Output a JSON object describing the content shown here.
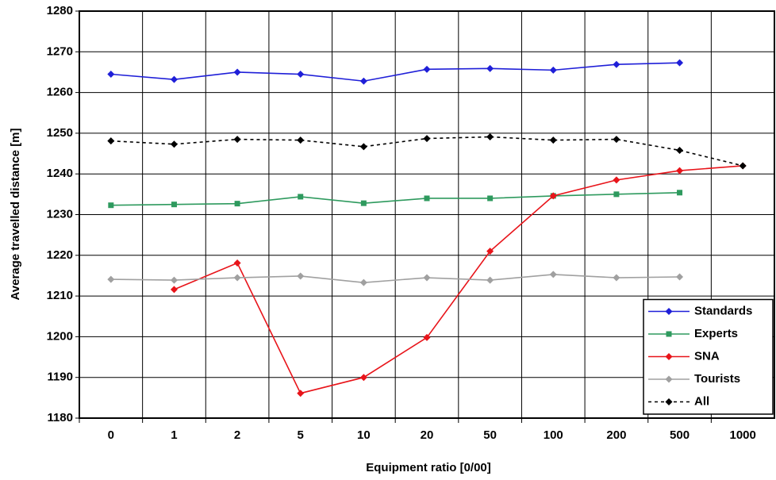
{
  "chart_data": {
    "type": "line",
    "x_label": "Equipment ratio [0/00]",
    "y_label": "Average travelled distance [m]",
    "categories": [
      "0",
      "1",
      "2",
      "5",
      "10",
      "20",
      "50",
      "100",
      "200",
      "500",
      "1000"
    ],
    "ylim": [
      1180,
      1280
    ],
    "yticks": [
      1180,
      1190,
      1200,
      1210,
      1220,
      1230,
      1240,
      1250,
      1260,
      1270,
      1280
    ],
    "grid": true,
    "legend": "lower right",
    "series": [
      {
        "name": "Standards",
        "color": "#1f1fd8",
        "marker": "diamond",
        "dash": false,
        "values": [
          1264.5,
          1263.2,
          1265.0,
          1264.5,
          1262.8,
          1265.7,
          1265.9,
          1265.5,
          1266.9,
          1267.3,
          null
        ]
      },
      {
        "name": "Experts",
        "color": "#2e9a5e",
        "marker": "square",
        "dash": false,
        "values": [
          1232.3,
          1232.5,
          1232.7,
          1234.4,
          1232.8,
          1234.0,
          1234.0,
          1234.6,
          1235.0,
          1235.4,
          null
        ]
      },
      {
        "name": "SNA",
        "color": "#e8141a",
        "marker": "diamond",
        "dash": false,
        "values": [
          null,
          1211.6,
          1218.1,
          1186.1,
          1190.0,
          1199.8,
          1221.0,
          1234.6,
          1238.5,
          1240.8,
          1242.0
        ]
      },
      {
        "name": "Tourists",
        "color": "#a0a0a0",
        "marker": "diamond",
        "dash": false,
        "values": [
          1214.1,
          1213.9,
          1214.5,
          1214.9,
          1213.3,
          1214.5,
          1213.9,
          1215.3,
          1214.5,
          1214.7,
          null
        ]
      },
      {
        "name": "All",
        "color": "#000000",
        "marker": "diamond",
        "dash": true,
        "values": [
          1248.1,
          1247.3,
          1248.5,
          1248.3,
          1246.7,
          1248.7,
          1249.1,
          1248.3,
          1248.5,
          1245.8,
          1242.0
        ]
      }
    ]
  }
}
